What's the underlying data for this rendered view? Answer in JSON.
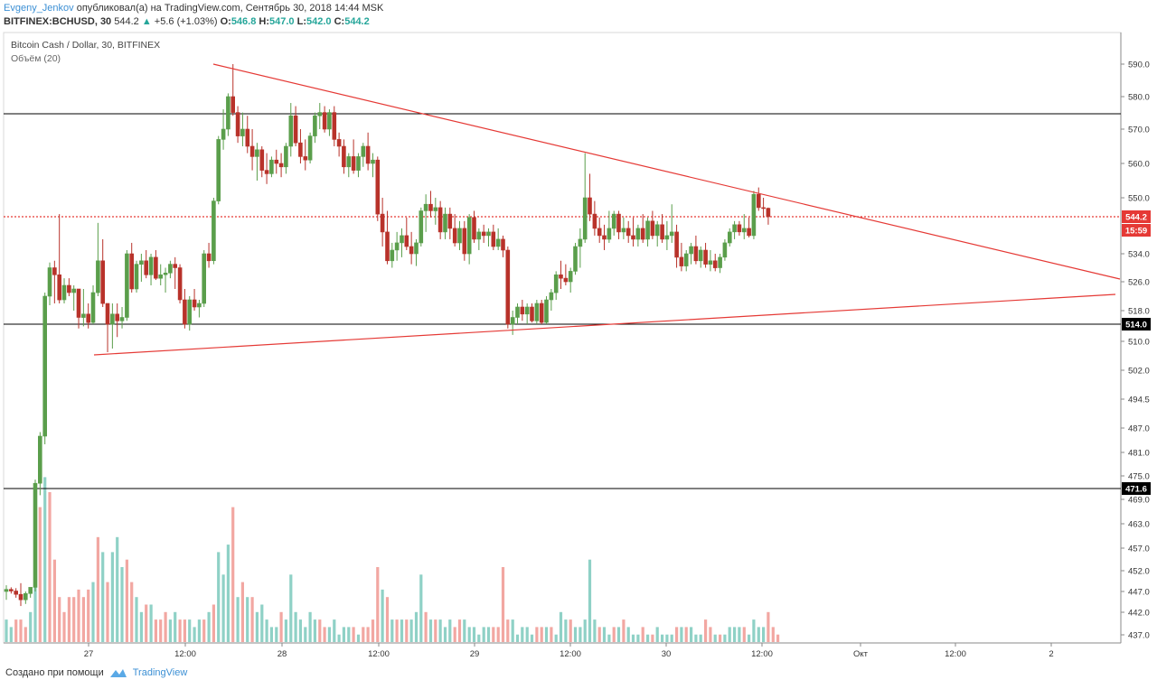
{
  "header": {
    "author": "Evgeny_Jenkov",
    "published_text": " опубликовал(а) на TradingView.com, Сентябрь 30, 2018 14:44 MSK",
    "symbol": "BITFINEX:BCHUSD, 30",
    "last": "544.2",
    "change_arrow": "▲",
    "change": "+5.6 (+1.03%)",
    "o_label": "O:",
    "o_val": "546.8",
    "h_label": "H:",
    "h_val": "547.0",
    "l_label": "L:",
    "l_val": "542.0",
    "c_label": "C:",
    "c_val": "544.2"
  },
  "legend": {
    "series_title": "Bitcoin Cash / Dollar, 30, BITFINEX",
    "volume_title": "Объём (20)"
  },
  "footer": {
    "created_with": "Создано при помощи",
    "brand": "TradingView"
  },
  "colors": {
    "up": "#5a9e4b",
    "down": "#b8322a",
    "vol_up": "#8fd1c6",
    "vol_down": "#f2a7a2",
    "trend": "#e53935",
    "price_line": "#e53935",
    "hline": "#000000"
  },
  "chart_data": {
    "type": "candlestick",
    "symbol": "BITFINEX:BCHUSD",
    "interval": "30",
    "y_ticks": [
      "590.0",
      "580.0",
      "570.0",
      "560.0",
      "550.0",
      "544.2",
      "534.0",
      "526.0",
      "518.0",
      "514.0",
      "510.0",
      "502.0",
      "494.5",
      "487.0",
      "481.0",
      "475.0",
      "471.6",
      "469.0",
      "463.0",
      "457.0",
      "452.0",
      "447.0",
      "442.0",
      "437.0"
    ],
    "x_ticks": [
      "27",
      "12:00",
      "28",
      "12:00",
      "29",
      "12:00",
      "30",
      "12:00",
      "Окт",
      "12:00",
      "2"
    ],
    "horizontal_levels": [
      "574.6",
      "514.0",
      "471.6"
    ],
    "current_price": "544.2",
    "countdown": "15:59",
    "candles": [
      [
        447.0,
        448.5,
        445.0,
        447.5
      ],
      [
        447.5,
        448.0,
        446.5,
        447.1
      ],
      [
        447.1,
        447.8,
        445.5,
        446.3
      ],
      [
        446.3,
        449.0,
        443.5,
        445.0
      ],
      [
        445.0,
        447.0,
        444.0,
        446.5
      ],
      [
        446.5,
        448.0,
        445.5,
        448.0
      ],
      [
        448.0,
        474.0,
        447.0,
        473.0
      ],
      [
        473.0,
        486.0,
        470.0,
        485.0
      ],
      [
        485.0,
        523.0,
        483.0,
        522.0
      ],
      [
        522.0,
        531.5,
        519.5,
        530.0
      ],
      [
        530.0,
        532.0,
        520.0,
        528.0
      ],
      [
        528.0,
        545.0,
        520.0,
        521.0
      ],
      [
        521.0,
        527.0,
        520.0,
        525.0
      ],
      [
        525.0,
        527.0,
        522.0,
        523.0
      ],
      [
        523.0,
        525.0,
        518.0,
        524.0
      ],
      [
        524.0,
        524.0,
        513.0,
        516.0
      ],
      [
        516.0,
        524.0,
        513.5,
        517.0
      ],
      [
        517.0,
        520.0,
        513.0,
        514.5
      ],
      [
        514.5,
        525.0,
        514.0,
        523.0
      ],
      [
        523.0,
        542.5,
        522.0,
        532.0
      ],
      [
        532.0,
        538.0,
        519.0,
        520.0
      ],
      [
        520.0,
        520.0,
        507.0,
        514.0
      ],
      [
        514.0,
        520.0,
        508.0,
        517.0
      ],
      [
        517.0,
        520.0,
        511.0,
        515.0
      ],
      [
        515.0,
        519.0,
        513.0,
        516.0
      ],
      [
        516.0,
        535.0,
        515.0,
        534.0
      ],
      [
        534.0,
        537.0,
        523.0,
        524.0
      ],
      [
        524.0,
        532.0,
        523.0,
        531.0
      ],
      [
        531.0,
        534.0,
        526.0,
        532.0
      ],
      [
        532.0,
        535.0,
        527.0,
        528.0
      ],
      [
        528.0,
        534.0,
        525.0,
        533.0
      ],
      [
        533.0,
        535.0,
        526.5,
        527.0
      ],
      [
        527.0,
        531.0,
        525.0,
        528.0
      ],
      [
        528.0,
        530.0,
        523.0,
        528.5
      ],
      [
        528.5,
        532.0,
        527.0,
        531.0
      ],
      [
        531.0,
        533.0,
        524.0,
        530.0
      ],
      [
        530.0,
        531.0,
        520.0,
        521.0
      ],
      [
        521.0,
        524.0,
        513.0,
        514.0
      ],
      [
        514.0,
        522.0,
        512.5,
        521.0
      ],
      [
        521.0,
        524.0,
        518.0,
        519.0
      ],
      [
        519.0,
        521.0,
        516.0,
        520.0
      ],
      [
        520.0,
        535.0,
        519.0,
        534.0
      ],
      [
        534.0,
        537.0,
        530.0,
        532.0
      ],
      [
        532.0,
        550.0,
        531.0,
        549.0
      ],
      [
        549.0,
        568.0,
        548.0,
        567.0
      ],
      [
        567.0,
        576.0,
        564.0,
        570.0
      ],
      [
        570.0,
        581.0,
        568.0,
        580.0
      ],
      [
        580.0,
        590.0,
        574.0,
        575.0
      ],
      [
        575.0,
        577.0,
        566.0,
        568.0
      ],
      [
        568.0,
        575.0,
        565.0,
        570.0
      ],
      [
        570.0,
        574.0,
        563.0,
        565.0
      ],
      [
        565.0,
        570.0,
        558.0,
        562.0
      ],
      [
        562.0,
        566.0,
        555.0,
        564.0
      ],
      [
        564.0,
        565.0,
        556.0,
        558.0
      ],
      [
        558.0,
        563.0,
        554.0,
        557.0
      ],
      [
        557.0,
        562.0,
        556.0,
        561.0
      ],
      [
        561.0,
        564.0,
        557.0,
        560.0
      ],
      [
        560.0,
        563.0,
        556.0,
        559.0
      ],
      [
        559.0,
        566.0,
        557.0,
        565.0
      ],
      [
        565.0,
        578.0,
        562.0,
        574.0
      ],
      [
        574.0,
        577.0,
        565.0,
        566.0
      ],
      [
        566.0,
        570.0,
        560.0,
        562.0
      ],
      [
        562.0,
        567.0,
        558.0,
        561.0
      ],
      [
        561.0,
        569.0,
        560.0,
        568.0
      ],
      [
        568.0,
        575.0,
        566.0,
        574.0
      ],
      [
        574.0,
        578.0,
        570.0,
        575.0
      ],
      [
        575.0,
        577.0,
        569.0,
        570.0
      ],
      [
        570.0,
        576.0,
        568.0,
        575.0
      ],
      [
        575.0,
        577.0,
        565.0,
        567.0
      ],
      [
        567.0,
        569.0,
        562.0,
        565.0
      ],
      [
        565.0,
        567.0,
        557.0,
        559.0
      ],
      [
        559.0,
        563.0,
        556.0,
        562.0
      ],
      [
        562.0,
        567.0,
        557.0,
        558.0
      ],
      [
        558.0,
        563.0,
        556.0,
        562.0
      ],
      [
        562.0,
        566.0,
        559.0,
        565.0
      ],
      [
        565.0,
        569.0,
        558.0,
        560.0
      ],
      [
        560.0,
        563.0,
        556.0,
        561.0
      ],
      [
        561.0,
        562.0,
        543.0,
        545.0
      ],
      [
        545.0,
        550.0,
        536.0,
        540.0
      ],
      [
        540.0,
        546.0,
        531.0,
        532.0
      ],
      [
        532.0,
        537.0,
        530.0,
        535.0
      ],
      [
        535.0,
        540.0,
        532.0,
        537.0
      ],
      [
        537.0,
        541.0,
        533.0,
        539.0
      ],
      [
        539.0,
        544.0,
        535.0,
        536.0
      ],
      [
        536.0,
        540.0,
        531.0,
        534.0
      ],
      [
        534.0,
        538.0,
        530.5,
        537.0
      ],
      [
        537.0,
        547.0,
        536.0,
        546.0
      ],
      [
        546.0,
        551.0,
        540.0,
        548.0
      ],
      [
        548.0,
        552.0,
        544.0,
        546.0
      ],
      [
        546.0,
        550.0,
        542.0,
        547.0
      ],
      [
        547.0,
        549.0,
        538.0,
        540.0
      ],
      [
        540.0,
        547.0,
        538.0,
        545.0
      ],
      [
        545.0,
        547.0,
        538.0,
        541.0
      ],
      [
        541.0,
        545.0,
        536.0,
        537.0
      ],
      [
        537.0,
        543.0,
        535.0,
        541.0
      ],
      [
        541.0,
        543.0,
        532.0,
        534.0
      ],
      [
        534.0,
        545.0,
        531.0,
        544.0
      ],
      [
        544.0,
        546.0,
        537.0,
        538.0
      ],
      [
        538.0,
        541.0,
        535.0,
        540.0
      ],
      [
        540.0,
        542.0,
        537.0,
        539.0
      ],
      [
        539.0,
        541.0,
        536.0,
        540.0
      ],
      [
        540.0,
        542.0,
        535.0,
        536.0
      ],
      [
        536.0,
        541.0,
        535.0,
        538.0
      ],
      [
        538.0,
        539.0,
        533.0,
        535.0
      ],
      [
        535.0,
        536.0,
        513.0,
        514.0
      ],
      [
        514.0,
        518.0,
        511.5,
        516.0
      ],
      [
        516.0,
        520.0,
        514.0,
        519.0
      ],
      [
        519.0,
        521.0,
        515.0,
        517.0
      ],
      [
        517.0,
        520.0,
        514.0,
        519.0
      ],
      [
        519.0,
        520.0,
        514.5,
        515.0
      ],
      [
        515.0,
        521.0,
        514.0,
        520.0
      ],
      [
        520.0,
        521.0,
        514.0,
        514.5
      ],
      [
        514.5,
        522.0,
        514.0,
        521.0
      ],
      [
        521.0,
        524.0,
        518.0,
        523.0
      ],
      [
        523.0,
        529.0,
        521.0,
        528.0
      ],
      [
        528.0,
        532.0,
        524.0,
        527.0
      ],
      [
        527.0,
        531.0,
        525.0,
        526.0
      ],
      [
        526.0,
        530.0,
        523.0,
        529.0
      ],
      [
        529.0,
        537.0,
        528.0,
        536.0
      ],
      [
        536.0,
        541.0,
        530.0,
        538.0
      ],
      [
        538.0,
        563.0,
        537.0,
        550.0
      ],
      [
        550.0,
        557.0,
        543.0,
        545.0
      ],
      [
        545.0,
        549.0,
        539.0,
        541.0
      ],
      [
        541.0,
        544.0,
        537.0,
        539.0
      ],
      [
        539.0,
        542.0,
        535.0,
        538.0
      ],
      [
        538.0,
        546.0,
        537.0,
        541.0
      ],
      [
        541.0,
        546.0,
        539.0,
        545.0
      ],
      [
        545.0,
        546.0,
        538.0,
        540.0
      ],
      [
        540.0,
        544.0,
        538.0,
        541.0
      ],
      [
        541.0,
        543.0,
        537.0,
        539.0
      ],
      [
        539.0,
        544.0,
        536.0,
        538.0
      ],
      [
        538.0,
        542.0,
        536.0,
        541.0
      ],
      [
        541.0,
        545.0,
        537.0,
        538.0
      ],
      [
        538.0,
        544.0,
        536.0,
        543.0
      ],
      [
        543.0,
        546.0,
        538.0,
        539.0
      ],
      [
        539.0,
        543.0,
        536.0,
        542.0
      ],
      [
        542.0,
        545.0,
        537.0,
        538.0
      ],
      [
        538.0,
        543.0,
        535.0,
        539.0
      ],
      [
        539.0,
        548.0,
        537.0,
        540.0
      ],
      [
        540.0,
        542.0,
        530.0,
        533.0
      ],
      [
        533.0,
        537.0,
        529.0,
        530.5
      ],
      [
        530.5,
        535.0,
        529.0,
        534.0
      ],
      [
        534.0,
        537.0,
        531.0,
        536.0
      ],
      [
        536.0,
        539.0,
        531.0,
        532.0
      ],
      [
        532.0,
        536.0,
        530.0,
        535.0
      ],
      [
        535.0,
        537.0,
        530.0,
        531.0
      ],
      [
        531.0,
        535.0,
        529.0,
        532.0
      ],
      [
        532.0,
        534.0,
        529.0,
        530.0
      ],
      [
        530.0,
        534.0,
        528.5,
        533.0
      ],
      [
        533.0,
        538.0,
        532.0,
        537.0
      ],
      [
        537.0,
        541.0,
        536.0,
        540.0
      ],
      [
        540.0,
        543.0,
        538.0,
        542.0
      ],
      [
        542.0,
        543.0,
        539.0,
        540.0
      ],
      [
        540.0,
        545.0,
        538.0,
        541.0
      ],
      [
        541.0,
        544.0,
        538.5,
        539.0
      ],
      [
        539.0,
        552.0,
        538.0,
        551.0
      ],
      [
        551.0,
        553.0,
        546.0,
        547.0
      ],
      [
        547.0,
        550.0,
        544.0,
        546.8
      ],
      [
        546.8,
        547.0,
        542.0,
        544.2
      ]
    ],
    "volume": [
      [
        3,
        1
      ],
      [
        2,
        1
      ],
      [
        3,
        0
      ],
      [
        3,
        0
      ],
      [
        2,
        0
      ],
      [
        4,
        1
      ],
      [
        20,
        1
      ],
      [
        18,
        0
      ],
      [
        22,
        1
      ],
      [
        20,
        0
      ],
      [
        11,
        0
      ],
      [
        6,
        0
      ],
      [
        4,
        0
      ],
      [
        6,
        0
      ],
      [
        6,
        0
      ],
      [
        7,
        0
      ],
      [
        6,
        0
      ],
      [
        7,
        0
      ],
      [
        8,
        1
      ],
      [
        14,
        0
      ],
      [
        12,
        1
      ],
      [
        8,
        0
      ],
      [
        12,
        1
      ],
      [
        14,
        1
      ],
      [
        10,
        1
      ],
      [
        11,
        0
      ],
      [
        8,
        0
      ],
      [
        6,
        1
      ],
      [
        4,
        1
      ],
      [
        5,
        0
      ],
      [
        5,
        1
      ],
      [
        3,
        0
      ],
      [
        3,
        0
      ],
      [
        4,
        0
      ],
      [
        3,
        1
      ],
      [
        4,
        1
      ],
      [
        3,
        0
      ],
      [
        3,
        0
      ],
      [
        3,
        1
      ],
      [
        2,
        1
      ],
      [
        3,
        1
      ],
      [
        3,
        0
      ],
      [
        4,
        1
      ],
      [
        5,
        0
      ],
      [
        12,
        1
      ],
      [
        9,
        1
      ],
      [
        13,
        1
      ],
      [
        18,
        0
      ],
      [
        6,
        1
      ],
      [
        8,
        0
      ],
      [
        6,
        1
      ],
      [
        6,
        0
      ],
      [
        4,
        1
      ],
      [
        5,
        1
      ],
      [
        3,
        1
      ],
      [
        2,
        1
      ],
      [
        2,
        1
      ],
      [
        4,
        0
      ],
      [
        3,
        1
      ],
      [
        9,
        1
      ],
      [
        4,
        1
      ],
      [
        3,
        1
      ],
      [
        2,
        1
      ],
      [
        4,
        1
      ],
      [
        3,
        1
      ],
      [
        3,
        0
      ],
      [
        2,
        0
      ],
      [
        2,
        1
      ],
      [
        3,
        1
      ],
      [
        1,
        1
      ],
      [
        2,
        1
      ],
      [
        2,
        1
      ],
      [
        2,
        0
      ],
      [
        1,
        1
      ],
      [
        2,
        0
      ],
      [
        2,
        0
      ],
      [
        3,
        0
      ],
      [
        10,
        0
      ],
      [
        7,
        1
      ],
      [
        6,
        0
      ],
      [
        3,
        1
      ],
      [
        3,
        0
      ],
      [
        3,
        1
      ],
      [
        3,
        0
      ],
      [
        3,
        1
      ],
      [
        4,
        1
      ],
      [
        9,
        1
      ],
      [
        4,
        0
      ],
      [
        3,
        1
      ],
      [
        3,
        0
      ],
      [
        3,
        1
      ],
      [
        2,
        1
      ],
      [
        3,
        1
      ],
      [
        2,
        0
      ],
      [
        3,
        0
      ],
      [
        3,
        1
      ],
      [
        2,
        1
      ],
      [
        2,
        1
      ],
      [
        1,
        1
      ],
      [
        2,
        1
      ],
      [
        2,
        1
      ],
      [
        2,
        0
      ],
      [
        2,
        0
      ],
      [
        10,
        0
      ],
      [
        3,
        0
      ],
      [
        3,
        1
      ],
      [
        1,
        1
      ],
      [
        2,
        1
      ],
      [
        2,
        1
      ],
      [
        1,
        1
      ],
      [
        2,
        0
      ],
      [
        2,
        0
      ],
      [
        2,
        1
      ],
      [
        2,
        0
      ],
      [
        1,
        1
      ],
      [
        4,
        1
      ],
      [
        3,
        1
      ],
      [
        3,
        0
      ],
      [
        2,
        1
      ],
      [
        2,
        1
      ],
      [
        3,
        1
      ],
      [
        11,
        1
      ],
      [
        3,
        1
      ],
      [
        2,
        0
      ],
      [
        2,
        1
      ],
      [
        1,
        1
      ],
      [
        2,
        0
      ],
      [
        2,
        1
      ],
      [
        3,
        0
      ],
      [
        2,
        1
      ],
      [
        1,
        1
      ],
      [
        1,
        1
      ],
      [
        2,
        0
      ],
      [
        1,
        1
      ],
      [
        1,
        0
      ],
      [
        2,
        1
      ],
      [
        1,
        1
      ],
      [
        1,
        1
      ],
      [
        1,
        1
      ],
      [
        2,
        0
      ],
      [
        2,
        1
      ],
      [
        2,
        0
      ],
      [
        2,
        1
      ],
      [
        1,
        1
      ],
      [
        1,
        1
      ],
      [
        3,
        0
      ],
      [
        2,
        0
      ],
      [
        1,
        1
      ],
      [
        1,
        0
      ],
      [
        1,
        1
      ],
      [
        2,
        1
      ],
      [
        2,
        1
      ],
      [
        2,
        1
      ],
      [
        2,
        0
      ],
      [
        1,
        1
      ],
      [
        3,
        1
      ],
      [
        2,
        1
      ],
      [
        2,
        1
      ],
      [
        4,
        0
      ],
      [
        2,
        0
      ],
      [
        1,
        0
      ]
    ]
  }
}
